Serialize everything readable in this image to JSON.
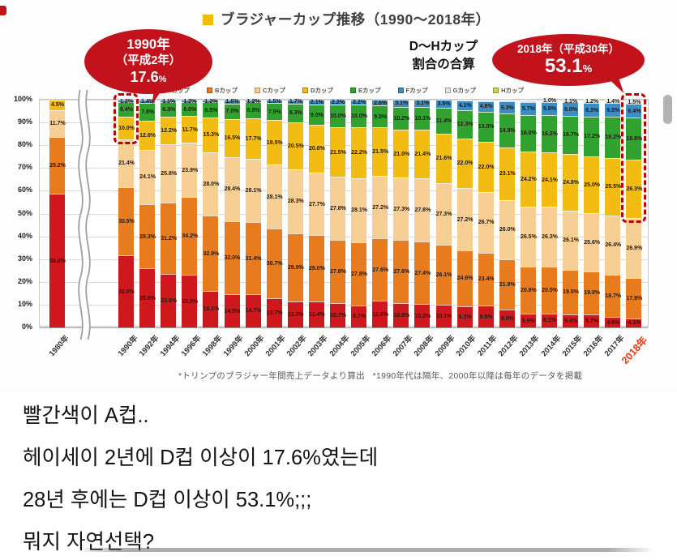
{
  "chart": {
    "title": "ブラジャーカップ推移（1990〜2018年）",
    "bubble_1990": {
      "title": "1990年",
      "subtitle": "（平成2年）",
      "value": "17.6",
      "unit": "%"
    },
    "dh_label": {
      "line1": "D〜Hカップ",
      "line2": "割合の合算"
    },
    "bubble_2018": {
      "title": "2018年（平成30年）",
      "value": "53.1",
      "unit": "%"
    },
    "footnote_1": "*トリンプのブラジャー年間売上データより算出",
    "footnote_2": "*1990年代は隔年、2000年以降は毎年のデータを掲載",
    "y_ticks": [
      "100%",
      "90%",
      "80%",
      "70%",
      "60%",
      "50%",
      "40%",
      "30%",
      "20%",
      "10%",
      "0%"
    ],
    "accent_red": "#C2121C",
    "highlight_box_color": "#C00000"
  },
  "chart_data": {
    "type": "bar",
    "stacked": true,
    "unit": "percent",
    "ylim": [
      0,
      100
    ],
    "grid": true,
    "legend_position": "top",
    "title": "ブラジャーカップ推移（1990〜2018年）",
    "x_highlight": "2018年",
    "highlight_boxes": [
      {
        "category": "1990年",
        "label": "D〜Hカップ合算 17.6%"
      },
      {
        "category": "2018年",
        "label": "D〜Hカップ合算 53.1%"
      }
    ],
    "categories": [
      "1980年",
      "1990年",
      "1992年",
      "1994年",
      "1996年",
      "1998年",
      "1999年",
      "2000年",
      "2001年",
      "2002年",
      "2003年",
      "2004年",
      "2005年",
      "2006年",
      "2007年",
      "2008年",
      "2009年",
      "2010年",
      "2011年",
      "2012年",
      "2013年",
      "2014年",
      "2015年",
      "2016年",
      "2017年",
      "2018年"
    ],
    "series": [
      {
        "name": "Aカップ",
        "color": "#CE181E",
        "values": [
          58.6,
          32.0,
          25.9,
          23.6,
          23.0,
          16.1,
          14.5,
          14.7,
          12.7,
          11.3,
          11.4,
          10.7,
          9.7,
          11.6,
          10.8,
          10.2,
          10.1,
          9.3,
          9.5,
          8.0,
          5.9,
          6.1,
          5.8,
          5.7,
          4.6,
          4.1
        ]
      },
      {
        "name": "Bカップ",
        "color": "#E87B1E",
        "values": [
          25.2,
          30.5,
          28.3,
          31.2,
          34.2,
          32.9,
          32.0,
          31.4,
          30.7,
          29.9,
          29.0,
          27.8,
          27.8,
          27.6,
          27.6,
          27.4,
          26.1,
          24.6,
          23.4,
          21.9,
          20.8,
          20.5,
          19.5,
          19.0,
          18.7,
          17.9
        ]
      },
      {
        "name": "Cカップ",
        "color": "#F7CE93",
        "values": [
          11.7,
          21.4,
          24.1,
          25.8,
          23.9,
          28.0,
          28.4,
          28.1,
          28.1,
          28.3,
          27.7,
          27.8,
          28.1,
          27.2,
          27.3,
          27.8,
          27.3,
          27.2,
          26.7,
          26.0,
          26.5,
          26.3,
          26.1,
          25.6,
          26.4,
          26.9
        ]
      },
      {
        "name": "Dカップ",
        "color": "#F3BC13",
        "values": [
          4.5,
          10.0,
          12.8,
          12.2,
          11.7,
          15.3,
          16.5,
          17.7,
          19.5,
          20.5,
          20.8,
          21.5,
          22.2,
          21.5,
          21.0,
          21.4,
          21.6,
          22.0,
          22.0,
          23.1,
          24.2,
          24.1,
          24.8,
          25.0,
          25.5,
          26.3
        ]
      },
      {
        "name": "Eカップ",
        "color": "#31A22F",
        "values": [
          0,
          6.4,
          7.8,
          6.3,
          6.0,
          6.5,
          7.0,
          6.9,
          7.5,
          8.3,
          9.0,
          10.0,
          10.0,
          9.5,
          10.2,
          10.1,
          11.4,
          12.3,
          13.0,
          14.9,
          16.0,
          16.2,
          16.7,
          17.2,
          18.2,
          18.8
        ]
      },
      {
        "name": "Fカップ",
        "color": "#3C8DC5",
        "values": [
          0,
          1.2,
          1.4,
          1.1,
          1.2,
          1.2,
          1.6,
          1.2,
          1.5,
          1.7,
          2.1,
          2.2,
          2.2,
          2.6,
          3.1,
          3.1,
          3.5,
          4.1,
          4.8,
          5.3,
          5.7,
          5.8,
          6.0,
          6.3,
          6.0,
          6.4
        ]
      },
      {
        "name": "Gカップ",
        "color": "#E4E4E4",
        "values": [
          0,
          0,
          0,
          0,
          0,
          0,
          0,
          0,
          0,
          0,
          0,
          0,
          0,
          0,
          0,
          0,
          0,
          0.5,
          0.6,
          0.8,
          0.9,
          1.0,
          1.1,
          1.2,
          1.4,
          1.5
        ]
      },
      {
        "name": "Hカップ",
        "color": "#C8D64B",
        "values": [
          0,
          0,
          0,
          0,
          0,
          0,
          0,
          0,
          0,
          0,
          0,
          0,
          0,
          0,
          0,
          0,
          0,
          0,
          0,
          0,
          0,
          0,
          0,
          0.1,
          0.1,
          0.2
        ]
      }
    ]
  },
  "comments": {
    "lines": [
      "빨간색이 A컵..",
      "헤이세이 2년에 D컵 이상이 17.6%였는데",
      "28년 후에는 D컵 이상이 53.1%;;;",
      "뭐지 자연선택?"
    ]
  }
}
